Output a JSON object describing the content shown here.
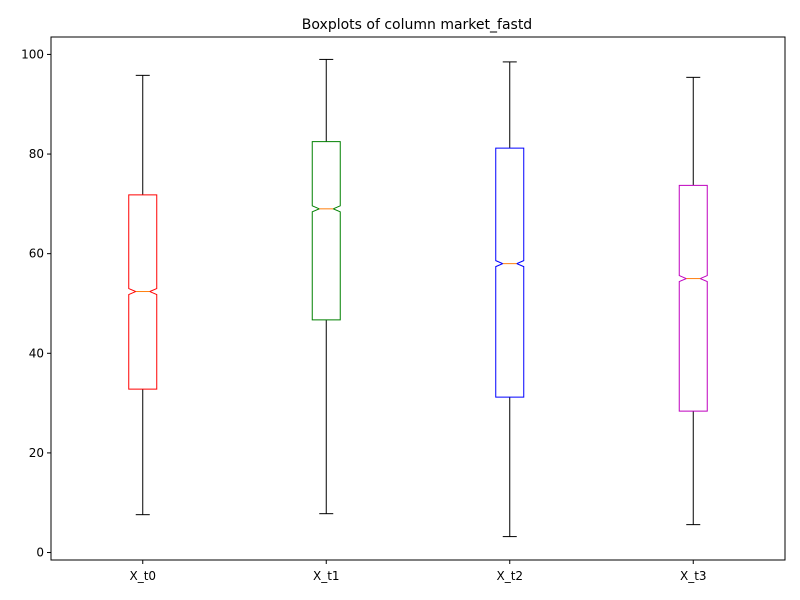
{
  "chart_data": {
    "type": "boxplot",
    "title": "Boxplots of column market_fastd",
    "xlabel": "",
    "ylabel": "",
    "ylim": [
      -1.5,
      103.5
    ],
    "yticks": [
      0,
      20,
      40,
      60,
      80,
      100
    ],
    "grid": false,
    "notched": true,
    "median_color": "#ff7f0e",
    "whisker_color": "#000000",
    "categories": [
      "X_t0",
      "X_t1",
      "X_t2",
      "X_t3"
    ],
    "series": [
      {
        "category": "X_t0",
        "color": "#ff0000",
        "whisker_low": 7.6,
        "q1": 32.8,
        "median": 52.4,
        "q3": 71.8,
        "whisker_high": 95.8
      },
      {
        "category": "X_t1",
        "color": "#008000",
        "whisker_low": 7.8,
        "q1": 46.7,
        "median": 69.0,
        "q3": 82.5,
        "whisker_high": 99.0
      },
      {
        "category": "X_t2",
        "color": "#0000ff",
        "whisker_low": 3.2,
        "q1": 31.2,
        "median": 58.0,
        "q3": 81.2,
        "whisker_high": 98.5
      },
      {
        "category": "X_t3",
        "color": "#bf00bf",
        "whisker_low": 5.6,
        "q1": 28.4,
        "median": 55.0,
        "q3": 73.7,
        "whisker_high": 95.4
      }
    ]
  }
}
